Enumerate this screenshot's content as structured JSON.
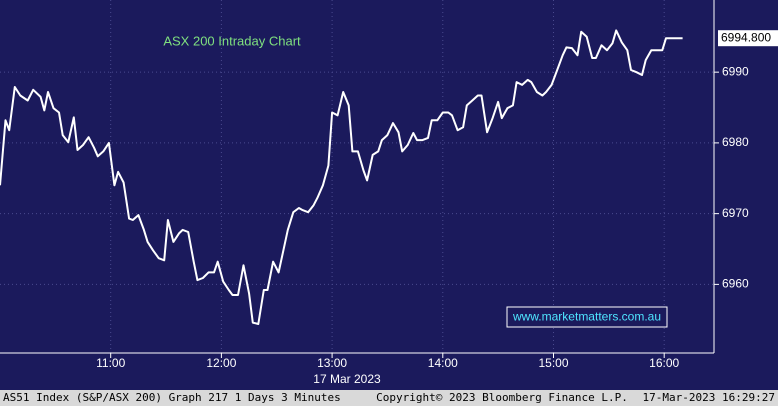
{
  "chart_data": {
    "type": "line",
    "title": "ASX 200 Intraday Chart",
    "annotation": "www.marketmatters.com.au",
    "date_label": "17 Mar 2023",
    "footer_left": "AS51 Index (S&P/ASX 200) Graph 217 1 Days 3 Minutes",
    "footer_center": "Copyright© 2023 Bloomberg Finance L.P.",
    "footer_right": "17-Mar-2023 16:29:27",
    "last_value": {
      "value": 6994.8,
      "label": "6994.800"
    },
    "grid": true,
    "xlim": [
      600,
      987
    ],
    "ylim": [
      6950.3,
      7000.2
    ],
    "xticks": [
      {
        "value": 660,
        "label": "11:00"
      },
      {
        "value": 720,
        "label": "12:00"
      },
      {
        "value": 780,
        "label": "13:00"
      },
      {
        "value": 840,
        "label": "14:00"
      },
      {
        "value": 900,
        "label": "15:00"
      },
      {
        "value": 960,
        "label": "16:00"
      }
    ],
    "yticks": [
      6960,
      6970,
      6980,
      6990
    ],
    "series": [
      {
        "color": "#ffffff",
        "x": [
          600,
          603,
          605,
          608,
          611,
          615,
          618,
          622,
          624,
          626,
          629,
          632,
          634,
          637,
          640,
          642,
          645,
          648,
          651,
          653,
          656,
          659,
          662,
          664,
          667,
          670,
          672,
          675,
          678,
          680,
          683,
          686,
          689,
          691,
          694,
          697,
          699,
          702,
          705,
          707,
          710,
          713,
          716,
          718,
          721,
          724,
          726,
          729,
          732,
          735,
          737,
          740,
          743,
          745,
          748,
          751,
          753,
          756,
          759,
          762,
          764,
          767,
          770,
          772,
          775,
          778,
          780,
          783,
          786,
          789,
          791,
          794,
          797,
          799,
          802,
          805,
          807,
          810,
          813,
          816,
          818,
          821,
          824,
          826,
          829,
          832,
          834,
          837,
          840,
          843,
          845,
          848,
          851,
          853,
          856,
          859,
          861,
          864,
          867,
          870,
          872,
          875,
          878,
          880,
          883,
          886,
          888,
          891,
          894,
          896,
          899,
          902,
          905,
          907,
          910,
          913,
          915,
          918,
          921,
          923,
          926,
          929,
          932,
          934,
          937,
          940,
          942,
          945,
          948,
          950,
          953,
          956,
          959,
          961,
          964,
          970
        ],
        "values": [
          6974.0,
          6983.2,
          6981.8,
          6987.9,
          6986.7,
          6986.0,
          6987.5,
          6986.5,
          6984.6,
          6987.2,
          6984.9,
          6984.3,
          6981.1,
          6980.1,
          6983.6,
          6979.0,
          6979.7,
          6980.8,
          6979.3,
          6978.1,
          6978.8,
          6980.0,
          6974.0,
          6975.9,
          6974.4,
          6969.3,
          6969.1,
          6969.8,
          6967.7,
          6966.0,
          6964.8,
          6963.7,
          6963.4,
          6969.1,
          6966.0,
          6967.2,
          6967.7,
          6967.4,
          6963.2,
          6960.6,
          6960.9,
          6961.7,
          6961.7,
          6963.2,
          6960.4,
          6959.2,
          6958.5,
          6958.5,
          6962.7,
          6958.7,
          6954.6,
          6954.4,
          6959.2,
          6959.2,
          6963.2,
          6961.7,
          6964.1,
          6967.7,
          6970.2,
          6970.8,
          6970.5,
          6970.2,
          6971.2,
          6972.2,
          6974.0,
          6976.8,
          6984.3,
          6983.9,
          6987.2,
          6985.3,
          6978.8,
          6978.8,
          6976.1,
          6974.7,
          6978.3,
          6978.8,
          6980.4,
          6981.1,
          6982.8,
          6981.5,
          6978.8,
          6979.7,
          6981.4,
          6980.4,
          6980.4,
          6980.7,
          6983.2,
          6983.2,
          6984.3,
          6984.3,
          6983.9,
          6981.8,
          6982.2,
          6985.3,
          6986.0,
          6986.7,
          6986.7,
          6981.5,
          6983.5,
          6985.8,
          6983.5,
          6984.9,
          6985.3,
          6988.6,
          6988.2,
          6988.9,
          6988.6,
          6987.2,
          6986.7,
          6987.2,
          6988.2,
          6990.3,
          6992.4,
          6993.5,
          6993.4,
          6992.4,
          6995.7,
          6995.0,
          6992.0,
          6992.0,
          6993.8,
          6993.1,
          6994.1,
          6995.9,
          6994.2,
          6993.1,
          6990.3,
          6990.0,
          6989.6,
          6991.7,
          6993.1,
          6993.1,
          6993.1,
          6994.8,
          6994.8,
          6994.8
        ]
      }
    ]
  }
}
